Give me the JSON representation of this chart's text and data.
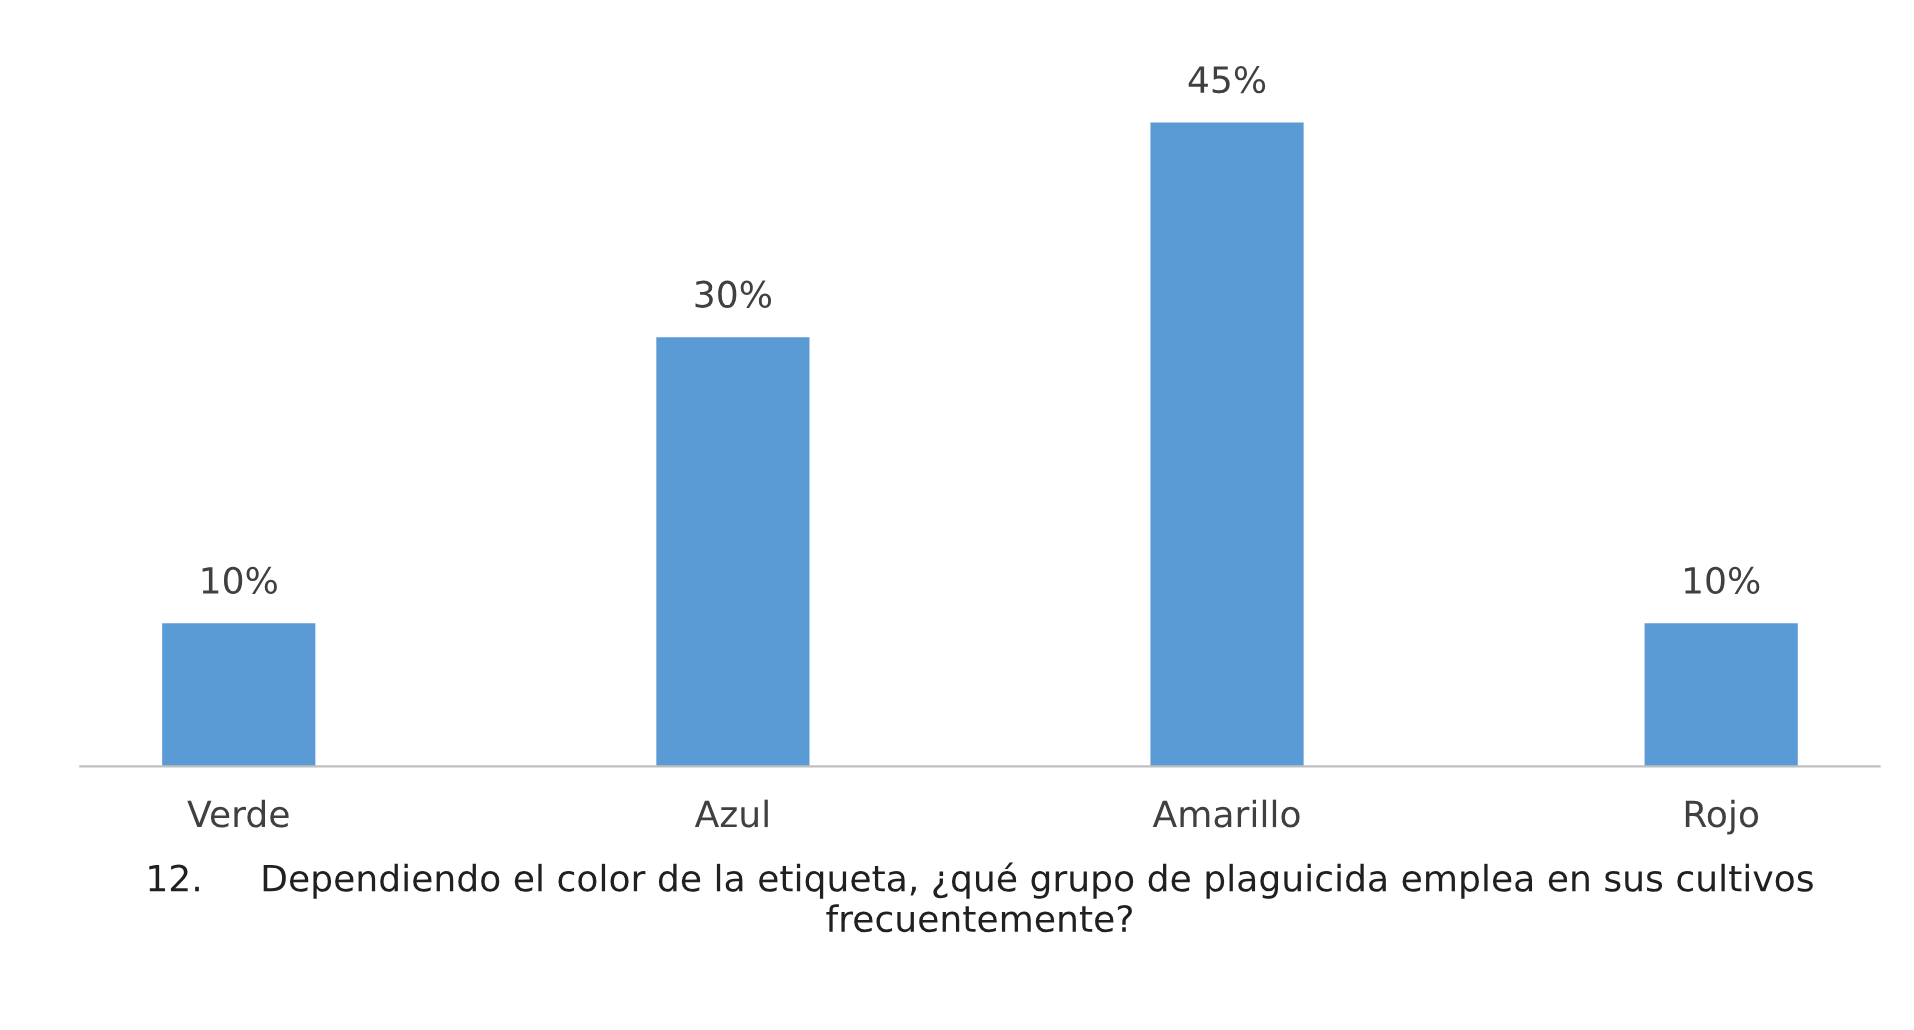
{
  "chart_data": {
    "type": "bar",
    "categories": [
      "Verde",
      "Azul",
      "Amarillo",
      "Rojo"
    ],
    "values": [
      10,
      30,
      45,
      10
    ],
    "value_labels": [
      "10%",
      "30%",
      "45%",
      "10%"
    ],
    "color": "#5b9bd5",
    "xlabel": "12.     Dependiendo el color de la etiqueta, ¿qué grupo de plaguicida emplea en sus cultivos frecuentemente?",
    "grid": false
  }
}
